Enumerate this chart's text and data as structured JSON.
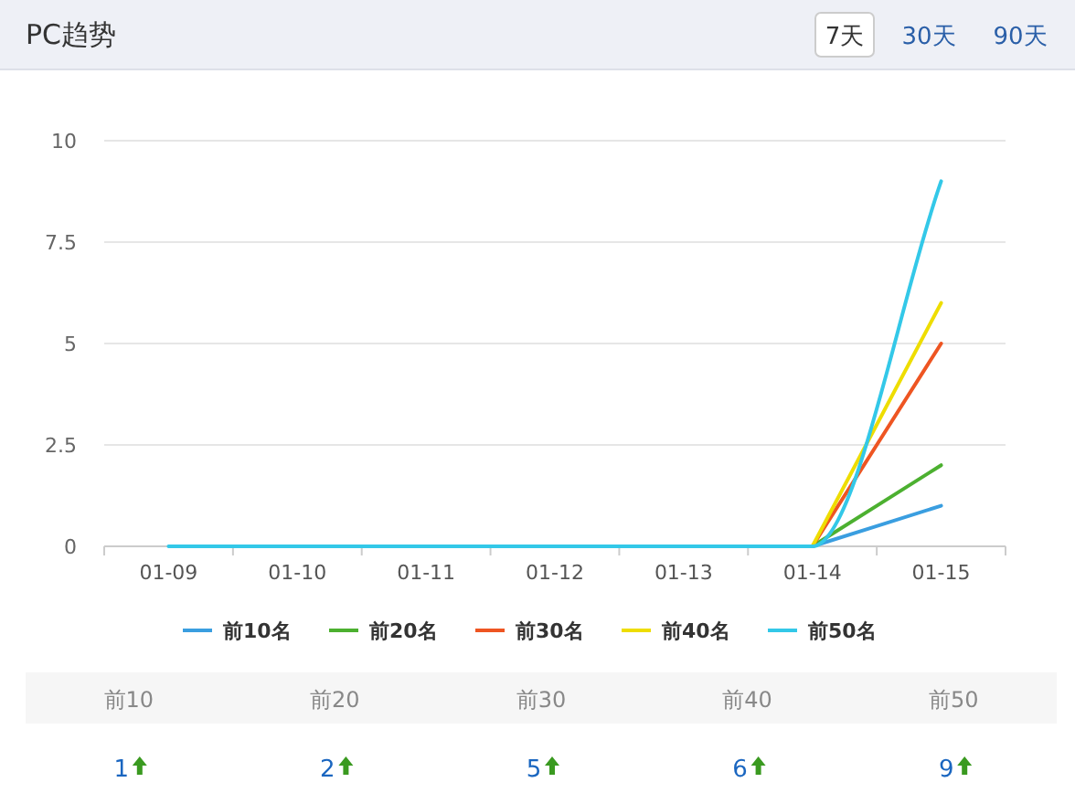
{
  "chart_data": {
    "type": "line",
    "title": "PC趋势",
    "categories": [
      "01-09",
      "01-10",
      "01-11",
      "01-12",
      "01-13",
      "01-14",
      "01-15"
    ],
    "series": [
      {
        "name": "前10名",
        "color": "#3a9ee0",
        "values": [
          null,
          null,
          null,
          null,
          null,
          0,
          1
        ]
      },
      {
        "name": "前20名",
        "color": "#4cb030",
        "values": [
          null,
          null,
          null,
          null,
          null,
          0,
          2
        ]
      },
      {
        "name": "前30名",
        "color": "#ee5522",
        "values": [
          null,
          null,
          null,
          null,
          null,
          0,
          5
        ]
      },
      {
        "name": "前40名",
        "color": "#eedd00",
        "values": [
          null,
          null,
          null,
          null,
          null,
          0,
          6
        ]
      },
      {
        "name": "前50名",
        "color": "#33c8e8",
        "values": [
          0,
          0,
          0,
          0,
          0,
          0,
          9
        ]
      }
    ],
    "ylim": [
      0,
      10
    ],
    "yticks": [
      0,
      2.5,
      5,
      7.5,
      10
    ],
    "grid": "y",
    "legend": "bottom",
    "annotations": [
      "7天",
      "30天",
      "90天",
      "前10",
      "前20",
      "前30",
      "前40",
      "前50",
      "1",
      "2",
      "5",
      "6",
      "9"
    ]
  }
}
